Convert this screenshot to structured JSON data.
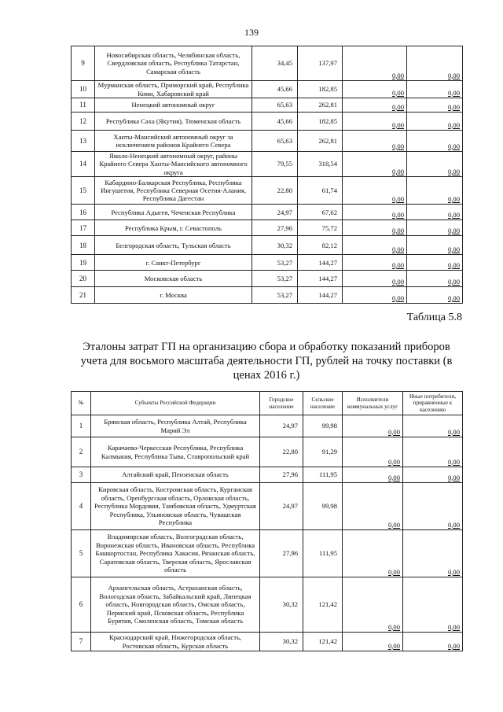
{
  "page_number": "139",
  "table1": {
    "rows": [
      [
        "9",
        "Новосибирская область, Челябинская область, Свердловская область, Республика Татарстан, Самарская область",
        "34,45",
        "137,97",
        "0,00",
        "0,00"
      ],
      [
        "10",
        "Мурманская область, Приморский край, Республика Коми, Хабаровский край",
        "45,66",
        "182,85",
        "0,00",
        "0,00"
      ],
      [
        "11",
        "Ненецкий автономный округ",
        "65,63",
        "262,81",
        "0,00",
        "0,00"
      ],
      [
        "12",
        "Республика Саха (Якутия), Тюменская область",
        "45,66",
        "182,85",
        "0,00",
        "0,00"
      ],
      [
        "13",
        "Ханты-Мансийский автономный округ за исключением районов Крайнего Севера",
        "65,63",
        "262,81",
        "0,00",
        "0,00"
      ],
      [
        "14",
        "Ямало-Ненецкий автономный округ, районы Крайнего Севера Ханты-Мансийского автономного округа",
        "79,55",
        "318,54",
        "0,00",
        "0,00"
      ],
      [
        "15",
        "Кабардино-Балкарская Республика, Республика Ингушетия, Республика Северная Осетия-Алания, Республика Дагестан",
        "22,80",
        "61,74",
        "0,00",
        "0,00"
      ],
      [
        "16",
        "Республика Адыгея, Чеченская Республика",
        "24,97",
        "67,62",
        "0,00",
        "0,00"
      ],
      [
        "17",
        "Республика Крым, г. Севастополь",
        "27,96",
        "75,72",
        "0,00",
        "0,00"
      ],
      [
        "18",
        "Белгородская область, Тульская область",
        "30,32",
        "82,12",
        "0,00",
        "0,00"
      ],
      [
        "19",
        "г. Санкт-Петербург",
        "53,27",
        "144,27",
        "0,00",
        "0,00"
      ],
      [
        "20",
        "Московская область",
        "53,27",
        "144,27",
        "0,00",
        "0,00"
      ],
      [
        "21",
        "г. Москва",
        "53,27",
        "144,27",
        "0,00",
        "0,00"
      ]
    ]
  },
  "table_label": "Таблица 5.8",
  "table_title": "Эталоны затрат ГП на организацию сбора и обработку показаний приборов учета для восьмого масштаба деятельности ГП, рублей на точку поставки (в ценах 2016 г.)",
  "table2": {
    "headers": [
      "№",
      "Субъекты Российской Федерации",
      "Городское население",
      "Сельское население",
      "Исполнители коммунальных услуг",
      "Иные потребители, приравненные к населению"
    ],
    "rows": [
      [
        "1",
        "Брянская область, Республика Алтай, Республика Марий Эл",
        "24,97",
        "99,98",
        "0,00",
        "0,00"
      ],
      [
        "2",
        "Карачаево-Черкесская Республика, Республика Калмыкия, Республика Тыва, Ставропольский край",
        "22,80",
        "91,29",
        "0,00",
        "0,00"
      ],
      [
        "3",
        "Алтайский край, Пензенская область",
        "27,96",
        "111,95",
        "0,00",
        "0,00"
      ],
      [
        "4",
        "Кировская область, Костромская область, Курганская область, Оренбургская область, Орловская область, Республика Мордовия, Тамбовская область, Удмуртская Республика, Ульяновская область, Чувашская Республика",
        "24,97",
        "99,98",
        "0,00",
        "0,00"
      ],
      [
        "5",
        "Владимирская область, Волгоградская область, Воронежская область, Ивановская область, Республика Башкортостан, Республика Хакасия, Рязанская область, Саратовская область, Тверская область, Ярославская область",
        "27,96",
        "111,95",
        "0,00",
        "0,00"
      ],
      [
        "6",
        "Архангельская область, Астраханская область, Вологодская область, Забайкальский край, Липецкая область, Новгородская область, Омская область, Пермский край, Псковская область, Республика Бурятия, Смоленская область, Томская область",
        "30,32",
        "121,42",
        "0,00",
        "0,00"
      ],
      [
        "7",
        "Краснодарский край, Нижегородская область, Ростовская область, Курская область",
        "30,32",
        "121,42",
        "0,00",
        "0,00"
      ]
    ]
  }
}
